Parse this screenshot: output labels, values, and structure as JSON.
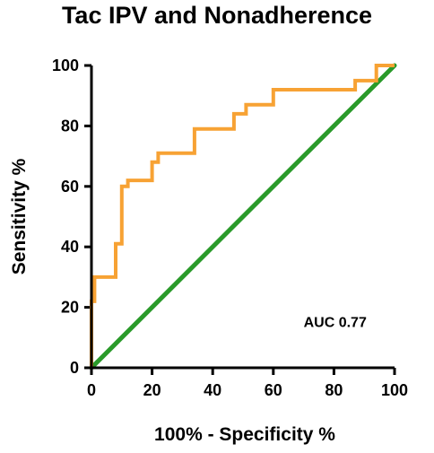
{
  "chart_data": {
    "type": "line",
    "title": "Tac IPV and Nonadherence",
    "xlabel": "100% - Specificity %",
    "ylabel": "Sensitivity %",
    "xlim": [
      0,
      100
    ],
    "ylim": [
      0,
      100
    ],
    "xticks": [
      "0",
      "20",
      "40",
      "60",
      "80",
      "100"
    ],
    "yticks": [
      "0",
      "20",
      "40",
      "60",
      "80",
      "100"
    ],
    "grid": false,
    "annotation": "AUC 0.77",
    "colors": {
      "roc": "#F7A234",
      "reference": "#2A9A2A",
      "axis": "#000000"
    },
    "series": [
      {
        "style": "step",
        "x": [
          0,
          0,
          1,
          1,
          3,
          3,
          8,
          8,
          10,
          10,
          12,
          12,
          20,
          20,
          22,
          22,
          34,
          34,
          47,
          47,
          51,
          51,
          60,
          60,
          87,
          87,
          94,
          94,
          100
        ],
        "y": [
          0,
          22,
          22,
          30,
          30,
          30,
          30,
          41,
          41,
          60,
          60,
          62,
          62,
          68,
          68,
          71,
          71,
          79,
          79,
          84,
          84,
          87,
          87,
          92,
          92,
          95,
          95,
          100,
          100
        ]
      },
      {
        "style": "line",
        "x": [
          0,
          100
        ],
        "y": [
          0,
          100
        ]
      }
    ]
  }
}
